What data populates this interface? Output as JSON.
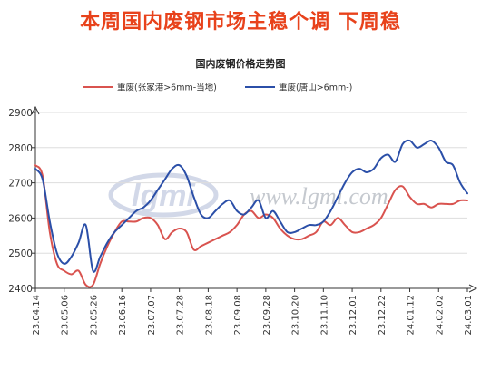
{
  "headline": "本周国内废钢市场主稳个调 下周稳",
  "watermark": {
    "logo": "lgmi",
    "url": "www.lgmi.com"
  },
  "colors": {
    "headline": "#e8421b",
    "series_red": "#d9534f",
    "series_blue": "#2b4fa8",
    "grid": "#dddddd",
    "axis": "#333333"
  },
  "chart_data": {
    "type": "line",
    "title": "国内废钢价格走势图",
    "xlabel": "",
    "ylabel": "",
    "ylim": [
      2400,
      2900
    ],
    "yticks": [
      2400,
      2500,
      2600,
      2700,
      2800,
      2900
    ],
    "x_tick_labels": [
      "23.04.14",
      "23.05.06",
      "23.05.26",
      "23.06.16",
      "23.07.07",
      "23.07.28",
      "23.08.18",
      "23.09.08",
      "23.09.28",
      "23.10.20",
      "23.11.10",
      "23.12.01",
      "23.12.22",
      "24.01.12",
      "24.02.02",
      "24.03.01"
    ],
    "x_range": [
      0,
      15
    ],
    "legend_position": "top",
    "grid": "horizontal",
    "series": [
      {
        "name": "重废(张家港>6mm-当地)",
        "color": "#d9534f",
        "x": [
          0,
          0.25,
          0.5,
          0.75,
          1.0,
          1.25,
          1.5,
          1.75,
          2.0,
          2.25,
          2.5,
          2.75,
          3.0,
          3.25,
          3.5,
          3.75,
          4.0,
          4.25,
          4.5,
          4.75,
          5.0,
          5.25,
          5.5,
          5.75,
          6.0,
          6.25,
          6.5,
          6.75,
          7.0,
          7.25,
          7.5,
          7.75,
          8.0,
          8.25,
          8.5,
          8.75,
          9.0,
          9.25,
          9.5,
          9.75,
          10.0,
          10.25,
          10.5,
          10.75,
          11.0,
          11.25,
          11.5,
          11.75,
          12.0,
          12.25,
          12.5,
          12.75,
          13.0,
          13.25,
          13.5,
          13.75,
          14.0,
          14.25,
          14.5,
          14.75,
          15.0
        ],
        "values": [
          2750,
          2720,
          2560,
          2470,
          2450,
          2440,
          2450,
          2410,
          2410,
          2470,
          2520,
          2560,
          2590,
          2590,
          2590,
          2600,
          2600,
          2580,
          2540,
          2560,
          2570,
          2560,
          2510,
          2520,
          2530,
          2540,
          2550,
          2560,
          2580,
          2610,
          2620,
          2600,
          2610,
          2600,
          2570,
          2550,
          2540,
          2540,
          2550,
          2560,
          2590,
          2580,
          2600,
          2580,
          2560,
          2560,
          2570,
          2580,
          2600,
          2640,
          2680,
          2690,
          2660,
          2640,
          2640,
          2630,
          2640,
          2640,
          2640,
          2650,
          2650
        ]
      },
      {
        "name": "重废(唐山>6mm-)",
        "color": "#2b4fa8",
        "x": [
          0,
          0.25,
          0.5,
          0.75,
          1.0,
          1.25,
          1.5,
          1.75,
          2.0,
          2.25,
          2.5,
          2.75,
          3.0,
          3.25,
          3.5,
          3.75,
          4.0,
          4.25,
          4.5,
          4.75,
          5.0,
          5.25,
          5.5,
          5.75,
          6.0,
          6.25,
          6.5,
          6.75,
          7.0,
          7.25,
          7.5,
          7.75,
          8.0,
          8.25,
          8.5,
          8.75,
          9.0,
          9.25,
          9.5,
          9.75,
          10.0,
          10.25,
          10.5,
          10.75,
          11.0,
          11.25,
          11.5,
          11.75,
          12.0,
          12.25,
          12.5,
          12.75,
          13.0,
          13.25,
          13.5,
          13.75,
          14.0,
          14.25,
          14.5,
          14.75,
          15.0
        ],
        "values": [
          2740,
          2710,
          2590,
          2500,
          2470,
          2490,
          2530,
          2580,
          2450,
          2490,
          2530,
          2560,
          2580,
          2600,
          2620,
          2630,
          2650,
          2680,
          2710,
          2740,
          2750,
          2720,
          2660,
          2610,
          2600,
          2620,
          2640,
          2650,
          2620,
          2610,
          2630,
          2650,
          2600,
          2620,
          2590,
          2560,
          2560,
          2570,
          2580,
          2580,
          2590,
          2620,
          2660,
          2700,
          2730,
          2740,
          2730,
          2740,
          2770,
          2780,
          2760,
          2810,
          2820,
          2800,
          2810,
          2820,
          2800,
          2760,
          2750,
          2700,
          2670
        ]
      }
    ]
  }
}
